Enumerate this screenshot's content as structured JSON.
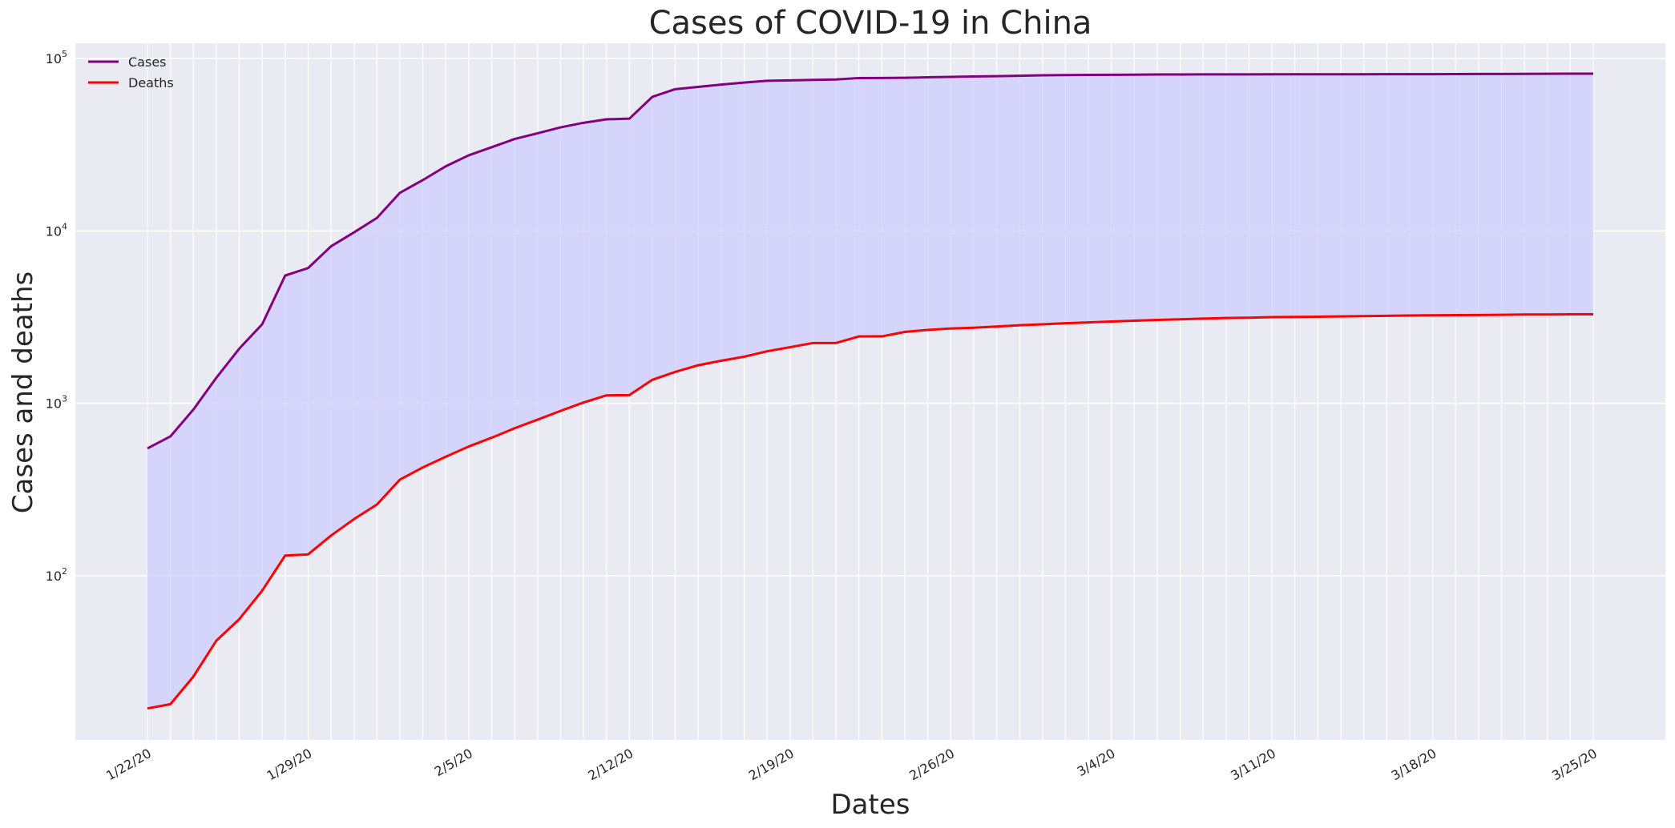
{
  "chart_data": {
    "type": "line",
    "title": "Cases of COVID-19 in China",
    "xlabel": "Dates",
    "ylabel": "Cases and deaths",
    "yscale": "log",
    "ylim": [
      10,
      120000
    ],
    "grid": true,
    "legend_position": "top-left",
    "x": [
      "1/22/20",
      "1/23/20",
      "1/24/20",
      "1/25/20",
      "1/26/20",
      "1/27/20",
      "1/28/20",
      "1/29/20",
      "1/30/20",
      "1/31/20",
      "2/1/20",
      "2/2/20",
      "2/3/20",
      "2/4/20",
      "2/5/20",
      "2/6/20",
      "2/7/20",
      "2/8/20",
      "2/9/20",
      "2/10/20",
      "2/11/20",
      "2/12/20",
      "2/13/20",
      "2/14/20",
      "2/15/20",
      "2/16/20",
      "2/17/20",
      "2/18/20",
      "2/19/20",
      "2/20/20",
      "2/21/20",
      "2/22/20",
      "2/23/20",
      "2/24/20",
      "2/25/20",
      "2/26/20",
      "2/27/20",
      "2/28/20",
      "2/29/20",
      "3/1/20",
      "3/2/20",
      "3/3/20",
      "3/4/20",
      "3/5/20",
      "3/6/20",
      "3/7/20",
      "3/8/20",
      "3/9/20",
      "3/10/20",
      "3/11/20",
      "3/12/20",
      "3/13/20",
      "3/14/20",
      "3/15/20",
      "3/16/20",
      "3/17/20",
      "3/18/20",
      "3/19/20",
      "3/20/20",
      "3/21/20",
      "3/22/20",
      "3/23/20",
      "3/24/20",
      "3/25/20"
    ],
    "xticks": [
      "1/22/20",
      "1/29/20",
      "2/5/20",
      "2/12/20",
      "2/19/20",
      "2/26/20",
      "3/4/20",
      "3/11/20",
      "3/18/20",
      "3/25/20"
    ],
    "yticks": [
      {
        "value": 100,
        "label": "10",
        "exp": "2"
      },
      {
        "value": 1000,
        "label": "10",
        "exp": "3"
      },
      {
        "value": 10000,
        "label": "10",
        "exp": "4"
      },
      {
        "value": 100000,
        "label": "10",
        "exp": "5"
      }
    ],
    "series": [
      {
        "name": "Cases",
        "color": "#800080",
        "values": [
          548,
          643,
          920,
          1406,
          2075,
          2877,
          5509,
          6087,
          8141,
          9802,
          11891,
          16630,
          19716,
          23707,
          27440,
          30587,
          34110,
          36814,
          39829,
          42354,
          44386,
          44759,
          59895,
          66358,
          68413,
          70513,
          72434,
          74211,
          74619,
          75077,
          75550,
          77001,
          77022,
          77241,
          77754,
          78166,
          78600,
          78928,
          79356,
          79932,
          80136,
          80261,
          80386,
          80537,
          80690,
          80770,
          80823,
          80860,
          80887,
          80921,
          80932,
          80945,
          80977,
          81003,
          81033,
          81058,
          81102,
          81156,
          81250,
          81305,
          81435,
          81498,
          81591,
          81661
        ]
      },
      {
        "name": "Deaths",
        "color": "#ff0000",
        "values": [
          17,
          18,
          26,
          42,
          56,
          82,
          131,
          133,
          171,
          213,
          259,
          361,
          425,
          490,
          562,
          632,
          717,
          804,
          904,
          1011,
          1112,
          1117,
          1369,
          1521,
          1663,
          1766,
          1864,
          2003,
          2116,
          2238,
          2238,
          2443,
          2445,
          2595,
          2665,
          2717,
          2746,
          2790,
          2837,
          2872,
          2914,
          2947,
          2983,
          3015,
          3044,
          3072,
          3100,
          3123,
          3139,
          3161,
          3172,
          3180,
          3193,
          3203,
          3217,
          3230,
          3241,
          3249,
          3253,
          3259,
          3274,
          3274,
          3281,
          3285
        ]
      }
    ],
    "fill_between": {
      "color": "#ccccff",
      "opacity": 0.7
    }
  }
}
